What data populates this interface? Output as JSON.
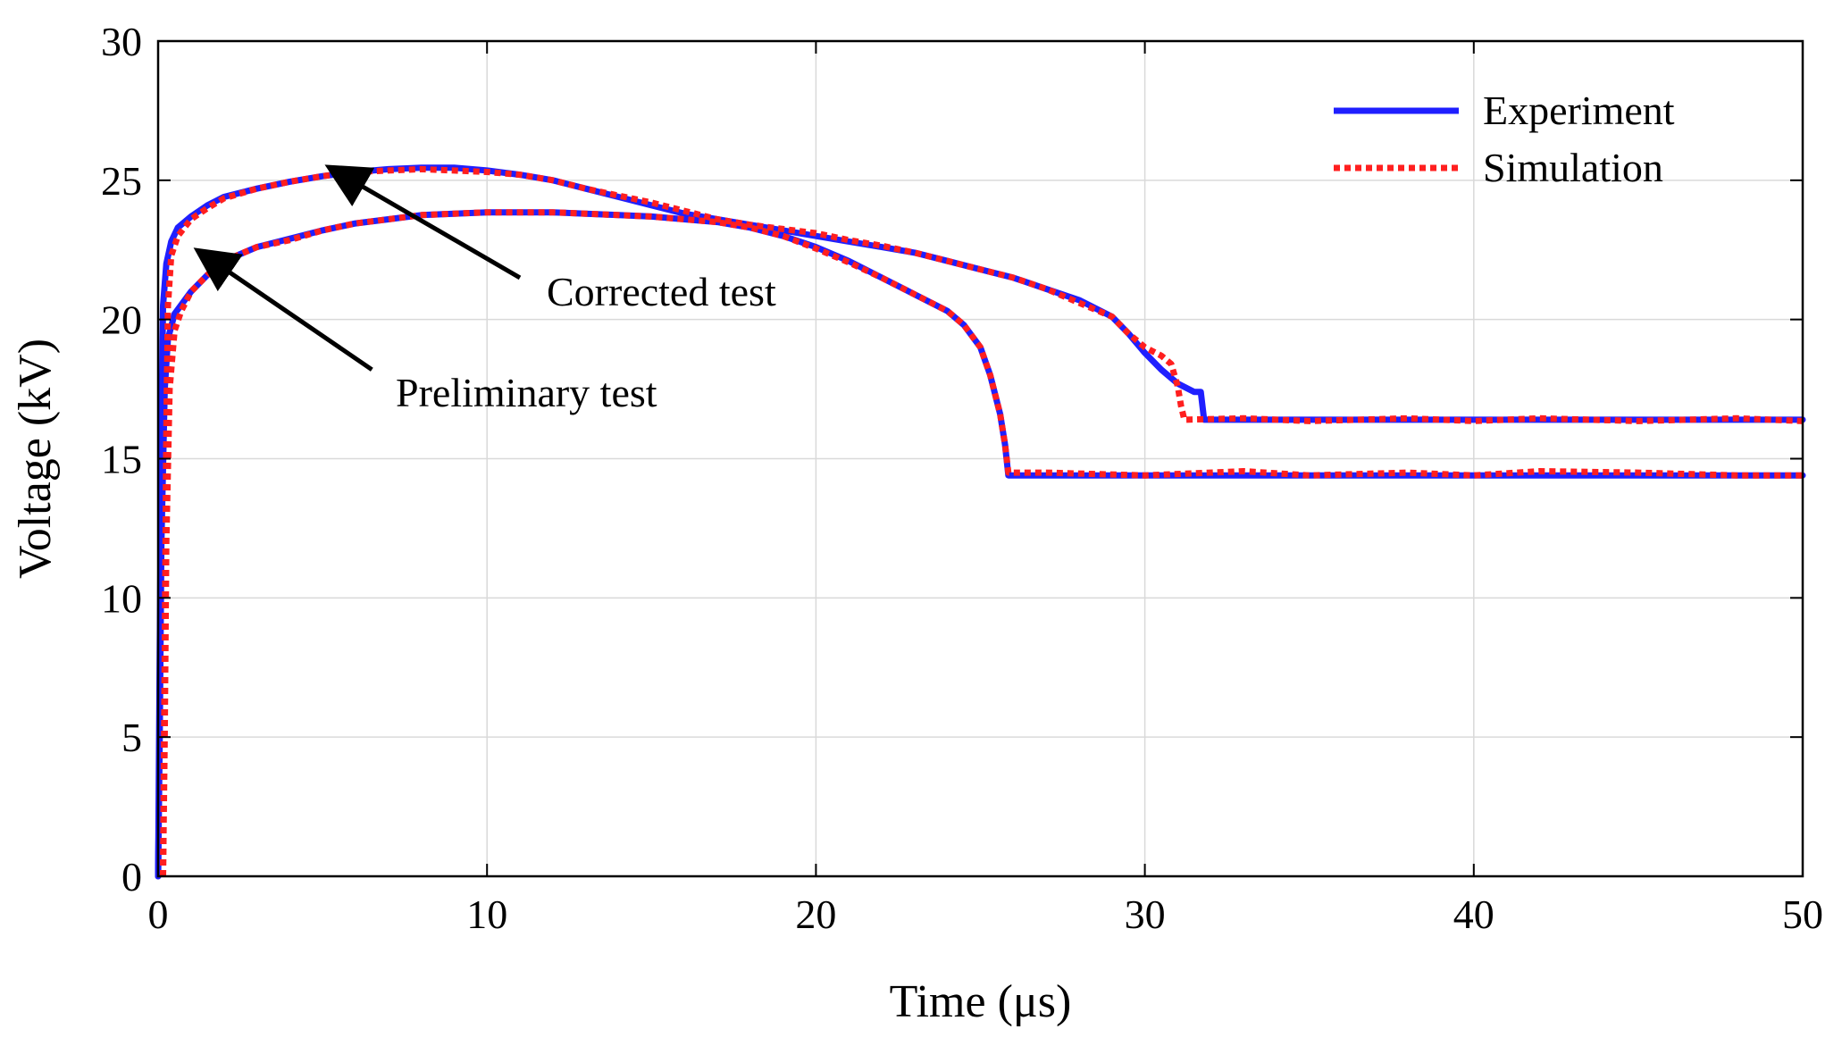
{
  "chart_data": {
    "type": "line",
    "title": "",
    "xlabel": "Time (μs)",
    "ylabel": "Voltage (kV)",
    "xlim": [
      0,
      50
    ],
    "ylim": [
      0,
      30
    ],
    "xticks": [
      0,
      10,
      20,
      30,
      40,
      50
    ],
    "yticks": [
      0,
      5,
      10,
      15,
      20,
      25,
      30
    ],
    "grid": true,
    "legend_position": "top-right",
    "legend": [
      {
        "name": "Experiment",
        "color": "#1f1fff",
        "style": "solid"
      },
      {
        "name": "Simulation",
        "color": "#ff1f1f",
        "style": "dotted"
      }
    ],
    "series": [
      {
        "name": "Experiment",
        "group": "Corrected test",
        "color": "#1f1fff",
        "style": "solid",
        "x": [
          0,
          0.05,
          0.1,
          0.15,
          0.25,
          0.4,
          0.6,
          1,
          1.5,
          2,
          3,
          4,
          5,
          6,
          7,
          8,
          9,
          10,
          11,
          12,
          13,
          14,
          15,
          16,
          17,
          18,
          19,
          20,
          21,
          22,
          23,
          24,
          25,
          26,
          27,
          28,
          29,
          29.5,
          30,
          30.5,
          31,
          31.5,
          31.7,
          31.8,
          33,
          36,
          40,
          45,
          50
        ],
        "y": [
          0,
          8,
          16,
          20.5,
          22,
          22.8,
          23.3,
          23.7,
          24.1,
          24.4,
          24.7,
          24.95,
          25.15,
          25.3,
          25.4,
          25.45,
          25.45,
          25.35,
          25.2,
          25.0,
          24.7,
          24.4,
          24.1,
          23.8,
          23.6,
          23.4,
          23.2,
          23.0,
          22.8,
          22.6,
          22.4,
          22.1,
          21.8,
          21.5,
          21.1,
          20.7,
          20.1,
          19.5,
          18.8,
          18.2,
          17.7,
          17.4,
          17.4,
          16.4,
          16.4,
          16.4,
          16.4,
          16.4,
          16.4
        ]
      },
      {
        "name": "Experiment",
        "group": "Preliminary test",
        "color": "#1f1fff",
        "style": "solid",
        "x": [
          0,
          0.05,
          0.1,
          0.2,
          0.3,
          0.5,
          1,
          1.5,
          2,
          3,
          4,
          5,
          6,
          7,
          8,
          9,
          10,
          11,
          12,
          13,
          14,
          15,
          16,
          17,
          18,
          19,
          20,
          21,
          22,
          23,
          24,
          24.5,
          25,
          25.3,
          25.6,
          25.75,
          25.85,
          27,
          30,
          35,
          40,
          45,
          50
        ],
        "y": [
          0,
          5,
          12,
          17.5,
          19.3,
          20.2,
          21.0,
          21.6,
          22.1,
          22.6,
          22.9,
          23.2,
          23.45,
          23.6,
          23.75,
          23.8,
          23.85,
          23.85,
          23.85,
          23.8,
          23.75,
          23.7,
          23.6,
          23.5,
          23.3,
          23.0,
          22.6,
          22.1,
          21.5,
          20.9,
          20.3,
          19.8,
          19.0,
          18.0,
          16.6,
          15.5,
          14.4,
          14.4,
          14.4,
          14.4,
          14.4,
          14.4,
          14.4
        ]
      },
      {
        "name": "Simulation",
        "group": "Corrected test",
        "color": "#ff1f1f",
        "style": "dotted",
        "x": [
          0.15,
          0.2,
          0.25,
          0.3,
          0.4,
          0.6,
          1,
          1.5,
          2,
          3,
          4,
          5,
          6,
          7,
          8,
          9,
          10,
          11,
          12,
          13,
          14,
          15,
          16,
          17,
          18,
          19,
          20,
          21,
          22,
          23,
          24,
          25,
          26,
          27,
          28,
          29,
          29.5,
          30,
          30.5,
          30.8,
          31.0,
          31.1,
          31.2,
          33,
          35,
          38,
          40,
          42,
          45,
          48,
          50
        ],
        "y": [
          0,
          8,
          16,
          20.5,
          22.3,
          23.0,
          23.6,
          24.0,
          24.35,
          24.7,
          24.95,
          25.15,
          25.3,
          25.35,
          25.4,
          25.35,
          25.3,
          25.2,
          25.0,
          24.7,
          24.45,
          24.2,
          23.9,
          23.6,
          23.4,
          23.25,
          23.1,
          22.85,
          22.65,
          22.4,
          22.1,
          21.8,
          21.5,
          21.1,
          20.6,
          20.1,
          19.5,
          19.0,
          18.7,
          18.4,
          17.6,
          16.9,
          16.4,
          16.45,
          16.35,
          16.45,
          16.35,
          16.45,
          16.35,
          16.45,
          16.35
        ]
      },
      {
        "name": "Simulation",
        "group": "Preliminary test",
        "color": "#ff1f1f",
        "style": "dotted",
        "x": [
          0.15,
          0.2,
          0.25,
          0.35,
          0.5,
          0.7,
          1,
          1.5,
          2,
          3,
          4,
          5,
          6,
          7,
          8,
          9,
          10,
          11,
          12,
          13,
          14,
          15,
          16,
          17,
          18,
          19,
          20,
          21,
          22,
          23,
          24,
          24.5,
          25,
          25.3,
          25.6,
          25.75,
          25.85,
          27,
          30,
          33,
          35,
          38,
          40,
          42,
          45,
          48,
          50
        ],
        "y": [
          0,
          5,
          12,
          17.5,
          19.6,
          20.3,
          21.0,
          21.6,
          22.1,
          22.6,
          22.85,
          23.2,
          23.45,
          23.6,
          23.75,
          23.8,
          23.85,
          23.85,
          23.85,
          23.8,
          23.75,
          23.7,
          23.6,
          23.5,
          23.3,
          23.0,
          22.55,
          22.05,
          21.5,
          20.9,
          20.3,
          19.8,
          19.0,
          18.0,
          16.6,
          15.5,
          14.5,
          14.5,
          14.4,
          14.55,
          14.4,
          14.5,
          14.4,
          14.55,
          14.5,
          14.4,
          14.4
        ]
      }
    ],
    "annotations": [
      {
        "text": "Corrected test",
        "arrow_to": [
          5.3,
          25.4
        ],
        "arrow_from": [
          11.0,
          21.5
        ]
      },
      {
        "text": "Preliminary test",
        "arrow_to": [
          1.3,
          22.4
        ],
        "arrow_from": [
          6.5,
          18.2
        ]
      }
    ]
  }
}
